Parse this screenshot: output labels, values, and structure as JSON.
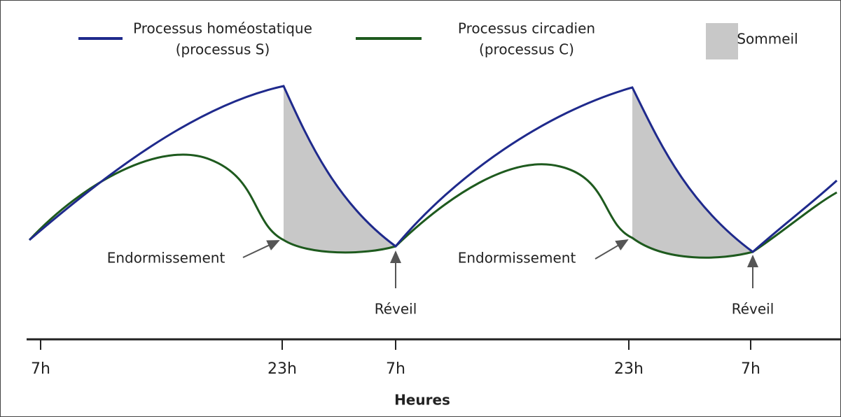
{
  "legend": [
    {
      "line1": "Processus homéostatique",
      "line2": "(processus S)"
    },
    {
      "line1": "Processus circadien",
      "line2": "(processus C)"
    },
    {
      "line1": "Sommeil"
    }
  ],
  "annotations": [
    "Endormissement",
    "Réveil",
    "Endormissement",
    "Réveil"
  ],
  "x_axis": {
    "ticks": [
      "7h",
      "23h",
      "7h",
      "23h",
      "7h"
    ],
    "title": "Heures"
  }
}
